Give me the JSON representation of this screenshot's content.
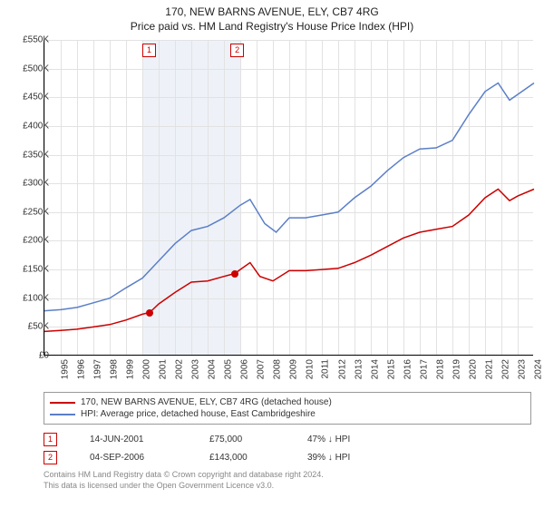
{
  "title": "170, NEW BARNS AVENUE, ELY, CB7 4RG",
  "subtitle": "Price paid vs. HM Land Registry's House Price Index (HPI)",
  "chart": {
    "type": "line",
    "background_color": "#ffffff",
    "grid_color": "#e2e2e2",
    "axis_color": "#000000",
    "shaded_band_color": "#eef2f8",
    "shaded_band_years": [
      2001,
      2007
    ],
    "ylim": [
      0,
      550
    ],
    "ytick_step": 50,
    "ylabels": [
      "£0",
      "£50K",
      "£100K",
      "£150K",
      "£200K",
      "£250K",
      "£300K",
      "£350K",
      "£400K",
      "£450K",
      "£500K",
      "£550K"
    ],
    "xlim": [
      1995,
      2025
    ],
    "xticks": [
      1995,
      1996,
      1997,
      1998,
      1999,
      2000,
      2001,
      2002,
      2003,
      2004,
      2005,
      2006,
      2007,
      2008,
      2009,
      2010,
      2011,
      2012,
      2013,
      2014,
      2015,
      2016,
      2017,
      2018,
      2019,
      2020,
      2021,
      2022,
      2023,
      2024
    ],
    "label_fontsize": 10,
    "series": [
      {
        "name": "price_paid",
        "label": "170, NEW BARNS AVENUE, ELY, CB7 4RG (detached house)",
        "color": "#cc0000",
        "line_width": 1.5,
        "points_year": [
          1995.0,
          1996.0,
          1997.0,
          1998.0,
          1999.0,
          2000.0,
          2001.0,
          2001.45,
          2002.0,
          2003.0,
          2004.0,
          2005.0,
          2006.0,
          2006.67,
          2007.0,
          2007.6,
          2008.2,
          2009.0,
          2010.0,
          2011.0,
          2012.0,
          2013.0,
          2014.0,
          2015.0,
          2016.0,
          2017.0,
          2018.0,
          2019.0,
          2020.0,
          2021.0,
          2022.0,
          2022.8,
          2023.5,
          2024.0,
          2025.0
        ],
        "points_value": [
          42,
          44,
          46,
          50,
          54,
          62,
          72,
          75,
          90,
          110,
          128,
          130,
          138,
          143,
          150,
          162,
          138,
          130,
          148,
          148,
          150,
          152,
          162,
          175,
          190,
          205,
          215,
          220,
          225,
          245,
          275,
          290,
          270,
          278,
          290
        ]
      },
      {
        "name": "hpi",
        "label": "HPI: Average price, detached house, East Cambridgeshire",
        "color": "#5b7fc7",
        "line_width": 1.5,
        "points_year": [
          1995.0,
          1996.0,
          1997.0,
          1998.0,
          1999.0,
          2000.0,
          2001.0,
          2002.0,
          2003.0,
          2004.0,
          2005.0,
          2006.0,
          2007.0,
          2007.6,
          2008.5,
          2009.2,
          2010.0,
          2011.0,
          2012.0,
          2013.0,
          2014.0,
          2015.0,
          2016.0,
          2017.0,
          2018.0,
          2019.0,
          2020.0,
          2021.0,
          2022.0,
          2022.8,
          2023.5,
          2024.0,
          2025.0
        ],
        "points_value": [
          78,
          80,
          84,
          92,
          100,
          118,
          135,
          165,
          195,
          218,
          225,
          240,
          262,
          272,
          230,
          215,
          240,
          240,
          245,
          250,
          275,
          295,
          322,
          345,
          360,
          362,
          375,
          420,
          460,
          475,
          445,
          455,
          475
        ]
      }
    ],
    "sale_markers": [
      {
        "n": "1",
        "year": 2001.45,
        "value": 75,
        "box_year": 2001.0,
        "box_y": 4
      },
      {
        "n": "2",
        "year": 2006.67,
        "value": 143,
        "box_year": 2006.4,
        "box_y": 4
      }
    ]
  },
  "legend": {
    "border_color": "#999999",
    "items": [
      {
        "color": "#cc0000",
        "label": "170, NEW BARNS AVENUE, ELY, CB7 4RG (detached house)"
      },
      {
        "color": "#5b7fc7",
        "label": "HPI: Average price, detached house, East Cambridgeshire"
      }
    ]
  },
  "sales": [
    {
      "n": "1",
      "date": "14-JUN-2001",
      "price": "£75,000",
      "pct": "47% ↓ HPI"
    },
    {
      "n": "2",
      "date": "04-SEP-2006",
      "price": "£143,000",
      "pct": "39% ↓ HPI"
    }
  ],
  "footer": {
    "line1": "Contains HM Land Registry data © Crown copyright and database right 2024.",
    "line2": "This data is licensed under the Open Government Licence v3.0."
  }
}
